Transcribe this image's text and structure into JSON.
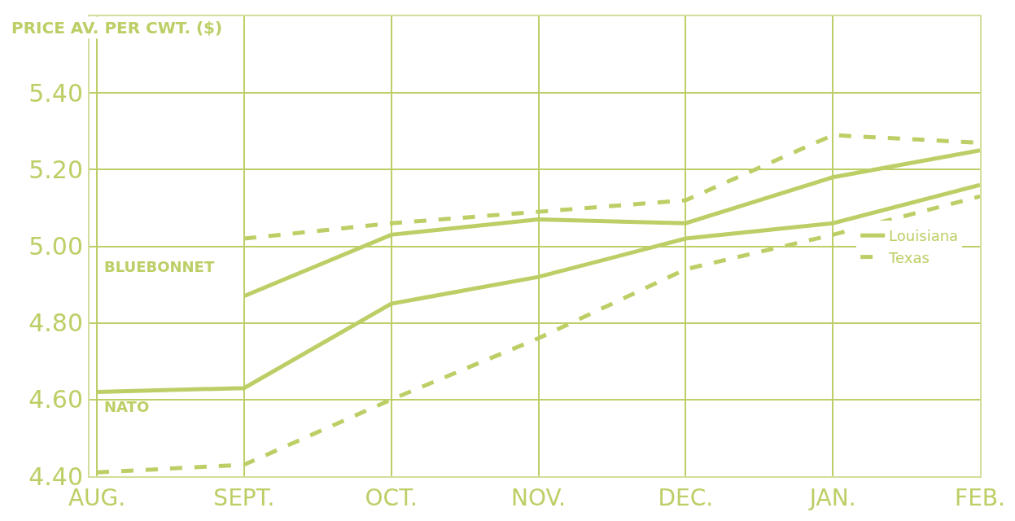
{
  "chart_data": {
    "type": "line",
    "ylabel": "PRICE AV. PER CWT. ($)",
    "categories": [
      "AUG.",
      "SEPT.",
      "OCT.",
      "NOV.",
      "DEC.",
      "JAN.",
      "FEB."
    ],
    "series": [
      {
        "name": "Louisiana",
        "color": "#bccf66",
        "line_style": "solid",
        "values": [
          null,
          4.87,
          5.03,
          5.07,
          5.06,
          5.18,
          5.25
        ]
      },
      {
        "name": "Texas",
        "color": "#bccf66",
        "line_style": "dashed",
        "values": [
          null,
          5.02,
          5.06,
          5.09,
          5.12,
          5.29,
          5.27
        ]
      },
      {
        "color": "#bccf66",
        "line_style": "solid",
        "values": [
          4.62,
          4.63,
          4.85,
          4.92,
          5.02,
          5.06,
          5.16
        ]
      },
      {
        "color": "#bccf66",
        "line_style": "dashed",
        "values": [
          4.41,
          4.43,
          4.6,
          4.76,
          4.94,
          5.03,
          5.13
        ]
      }
    ],
    "annotations": [
      "BLUEBONNET",
      "NATO"
    ],
    "ylim": [
      4.4,
      5.6
    ],
    "yticks": [
      {
        "value": 4.4,
        "label": "4.40"
      },
      {
        "value": 4.6,
        "label": "4.60"
      },
      {
        "value": 4.8,
        "label": "4.80"
      },
      {
        "value": 5.0,
        "label": "5.00"
      },
      {
        "value": 5.2,
        "label": "5.20"
      },
      {
        "value": 5.4,
        "label": "5.40"
      }
    ],
    "grid": true,
    "legend": "right",
    "marker": "none"
  }
}
